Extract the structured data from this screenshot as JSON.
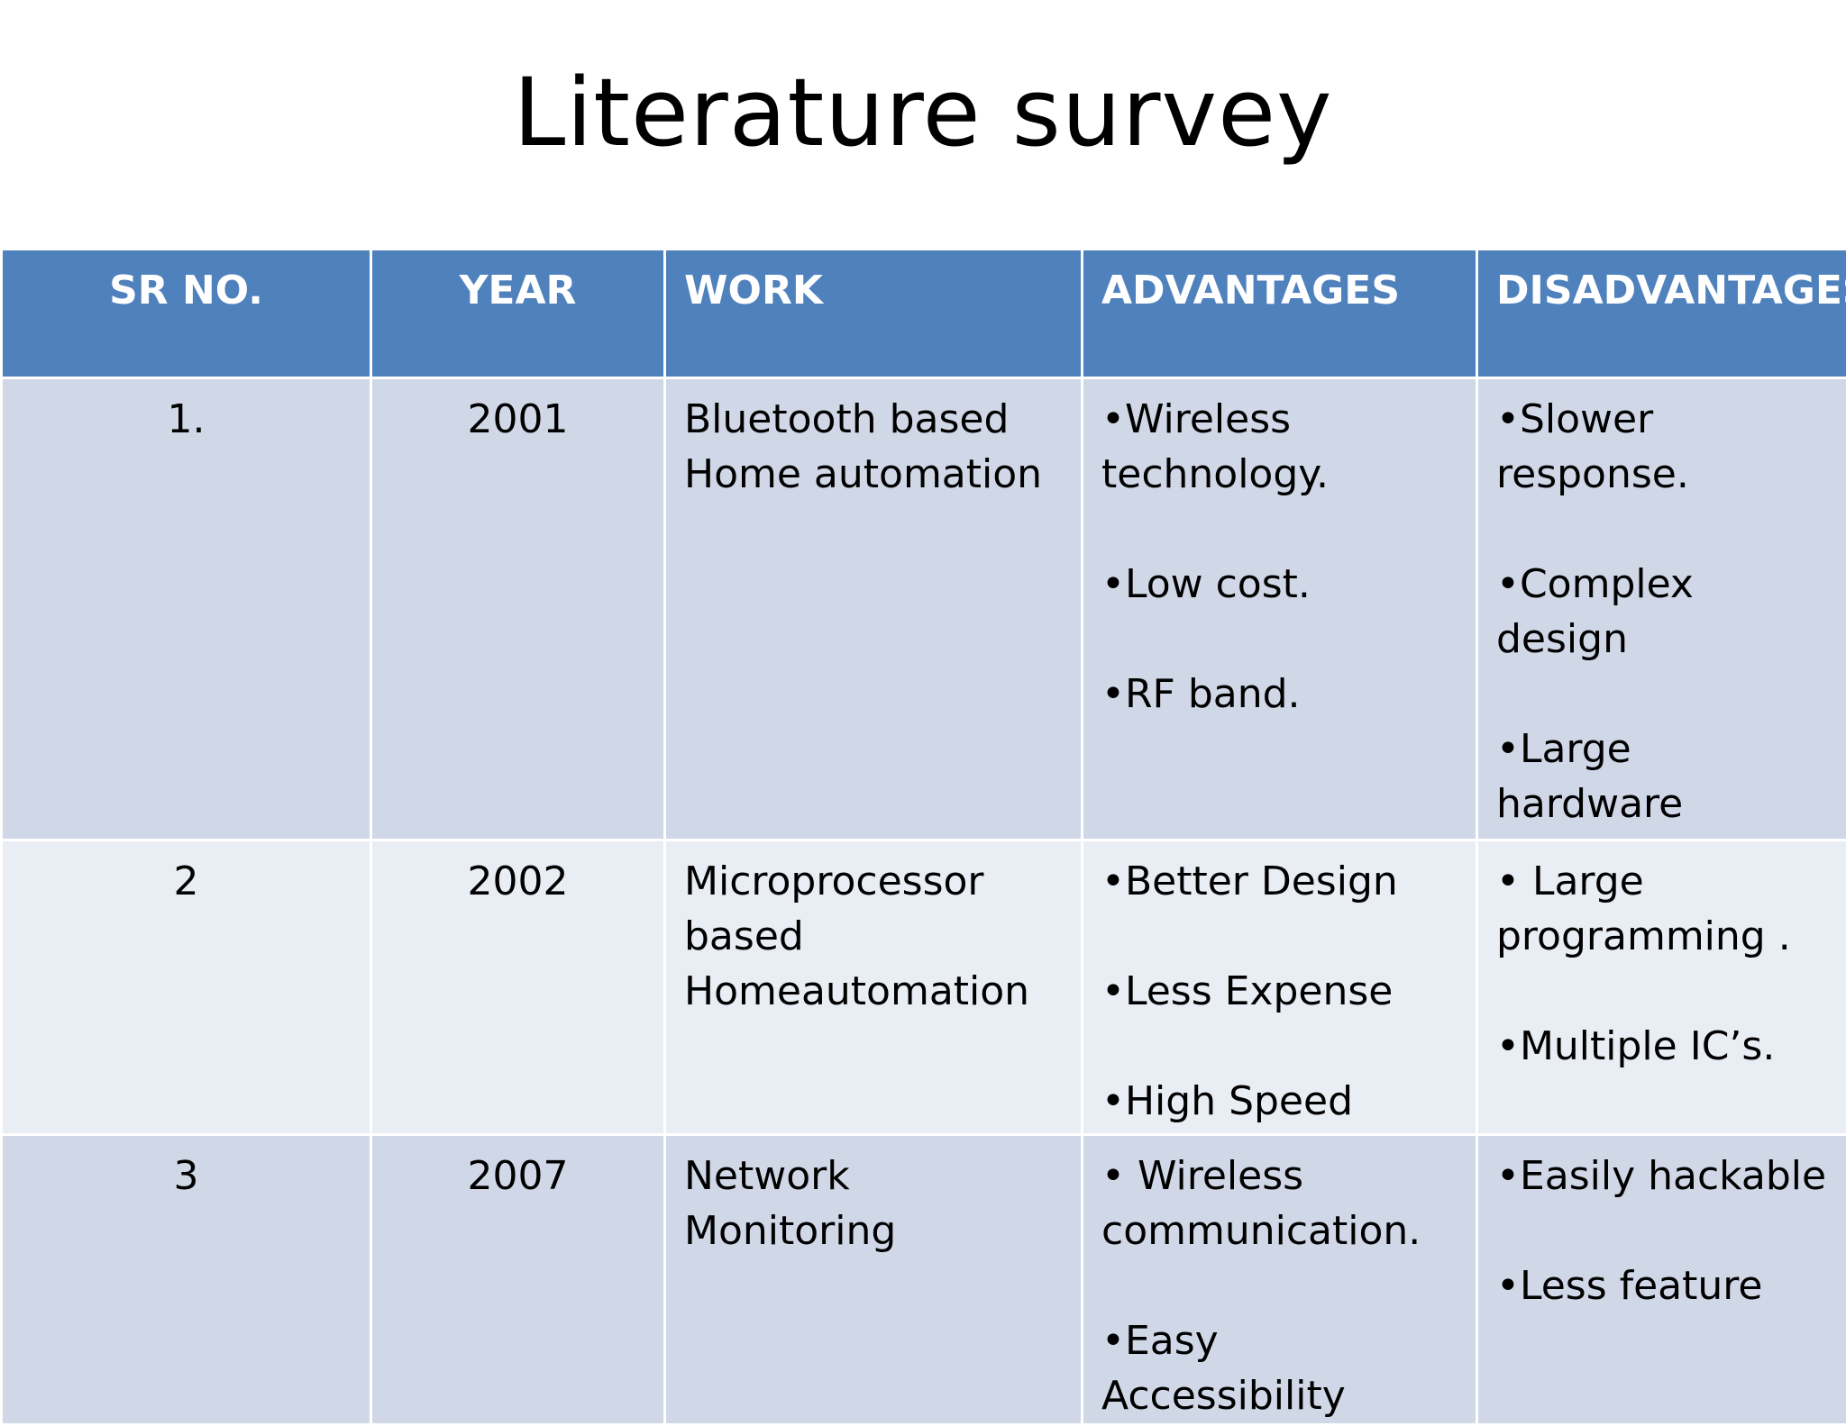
{
  "title": "Literature survey",
  "headers": {
    "sr_no": "SR NO.",
    "year": "YEAR",
    "work": "WORK",
    "advantages": "ADVANTAGES",
    "disadvantages": "DISADVANTAGES"
  },
  "rows": [
    {
      "sr_no": "1.",
      "year": "2001",
      "work": [
        "Bluetooth based",
        "Home automation"
      ],
      "advantages": [
        "•Wireless technology.",
        "•Low cost.",
        "•RF band."
      ],
      "disadvantages": [
        "•Slower response.",
        "•Complex design",
        "•Large hardware"
      ]
    },
    {
      "sr_no": "2",
      "year": "2002",
      "work": [
        "Microprocessor",
        "based",
        "Homeautomation"
      ],
      "advantages": [
        "•Better Design",
        "•Less Expense",
        "•High Speed"
      ],
      "disadvantages": [
        "• Large programming .",
        "•Multiple IC’s."
      ]
    },
    {
      "sr_no": "3",
      "year": "2007",
      "work": [
        "Network",
        "Monitoring"
      ],
      "advantages": [
        "• Wireless communication.",
        "•Easy Accessibility"
      ],
      "disadvantages": [
        "•Easily hackable",
        "•Less feature"
      ]
    }
  ]
}
